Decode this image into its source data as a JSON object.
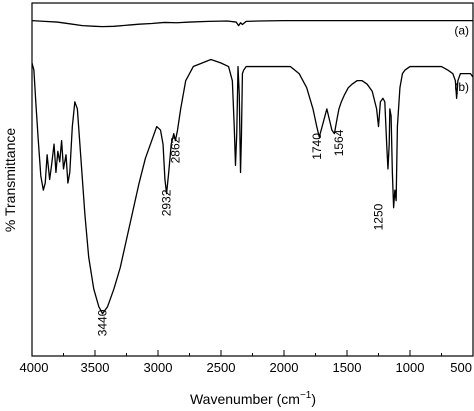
{
  "chart_data": {
    "type": "line",
    "xlabel": "Wavenumber (cm",
    "xlabel_sup": "−1",
    "xlabel_close": ")",
    "ylabel": "% Transmittance",
    "xlim": [
      4000,
      500
    ],
    "x_reversed": true,
    "ylim": [
      0,
      100
    ],
    "y_ticks_shown": false,
    "grid": false,
    "x_ticks": [
      4000,
      3500,
      3000,
      2500,
      2000,
      1500,
      1000,
      500
    ],
    "x_tick_labels": [
      "4000",
      "3500",
      "3000",
      "2500",
      "2000",
      "1500",
      "1000",
      "500"
    ],
    "series": [
      {
        "name": "(a)",
        "x": [
          4000,
          3900,
          3800,
          3700,
          3600,
          3500,
          3440,
          3350,
          3250,
          3150,
          3050,
          2950,
          2850,
          2750,
          2600,
          2450,
          2380,
          2360,
          2345,
          2330,
          2300,
          2200,
          2000,
          1800,
          1600,
          1400,
          1200,
          1000,
          800,
          600,
          500
        ],
        "y": [
          95.0,
          94.8,
          94.6,
          94.1,
          93.6,
          93.4,
          93.3,
          93.4,
          93.7,
          94.0,
          94.2,
          94.5,
          94.4,
          94.6,
          94.8,
          94.9,
          94.6,
          93.6,
          94.4,
          93.9,
          94.8,
          94.9,
          95.0,
          95.0,
          95.0,
          95.0,
          95.0,
          95.0,
          95.0,
          95.0,
          95.0
        ]
      },
      {
        "name": "(b)",
        "x": [
          4000,
          3985,
          3970,
          3950,
          3930,
          3910,
          3895,
          3880,
          3860,
          3845,
          3825,
          3810,
          3795,
          3780,
          3765,
          3750,
          3730,
          3715,
          3700,
          3680,
          3660,
          3640,
          3610,
          3580,
          3550,
          3510,
          3470,
          3440,
          3400,
          3350,
          3300,
          3250,
          3200,
          3150,
          3100,
          3050,
          3010,
          2980,
          2960,
          2945,
          2932,
          2915,
          2895,
          2875,
          2862,
          2845,
          2820,
          2780,
          2720,
          2650,
          2580,
          2500,
          2440,
          2410,
          2395,
          2385,
          2375,
          2365,
          2355,
          2345,
          2338,
          2330,
          2320,
          2300,
          2250,
          2150,
          2050,
          1950,
          1880,
          1820,
          1770,
          1740,
          1720,
          1690,
          1660,
          1640,
          1620,
          1600,
          1580,
          1564,
          1545,
          1520,
          1490,
          1460,
          1420,
          1380,
          1340,
          1300,
          1265,
          1250,
          1235,
          1215,
          1200,
          1185,
          1175,
          1165,
          1160,
          1150,
          1140,
          1130,
          1120,
          1110,
          1100,
          1080,
          1060,
          1040,
          1000,
          950,
          900,
          850,
          800,
          750,
          700,
          660,
          640,
          630,
          620,
          600,
          580,
          560,
          540,
          520,
          500
        ],
        "y": [
          83.0,
          81.0,
          72.0,
          61.0,
          51.0,
          47.0,
          49.0,
          57.0,
          50.0,
          54.0,
          60.0,
          52.0,
          58.0,
          55.0,
          61.0,
          53.0,
          57.0,
          49.0,
          52.0,
          65.0,
          72.0,
          70.0,
          55.0,
          40.0,
          28.0,
          19.0,
          14.0,
          12.0,
          14.0,
          19.0,
          25.0,
          33.0,
          41.0,
          49.0,
          56.0,
          61.0,
          65.0,
          64.0,
          60.0,
          50.0,
          46.0,
          52.0,
          60.0,
          63.0,
          61.0,
          64.0,
          70.0,
          78.0,
          82.0,
          83.0,
          84.0,
          83.0,
          82.0,
          78.0,
          65.0,
          54.0,
          63.0,
          82.0,
          74.0,
          52.0,
          62.0,
          80.0,
          81.0,
          82.0,
          82.0,
          82.0,
          82.0,
          82.0,
          80.0,
          76.0,
          70.0,
          65.0,
          62.0,
          66.0,
          70.0,
          67.0,
          64.0,
          63.0,
          67.0,
          70.0,
          72.0,
          74.0,
          76.0,
          77.0,
          78.0,
          78.0,
          77.0,
          75.0,
          70.0,
          65.0,
          72.0,
          73.0,
          72.0,
          60.0,
          53.0,
          60.0,
          70.0,
          68.0,
          52.0,
          42.0,
          47.0,
          44.0,
          65.0,
          76.0,
          80.0,
          81.0,
          82.0,
          82.0,
          82.0,
          82.0,
          82.0,
          82.0,
          81.0,
          80.0,
          78.0,
          73.0,
          78.0,
          80.0,
          80.0,
          80.0,
          80.0,
          80.0,
          79.0
        ]
      }
    ],
    "annotations": [
      {
        "text": "3440",
        "x": 3440,
        "y": 12,
        "rotate": -90
      },
      {
        "text": "2932",
        "x": 2932,
        "y": 46,
        "rotate": -90
      },
      {
        "text": "2862",
        "x": 2862,
        "y": 61,
        "rotate": -90
      },
      {
        "text": "1740",
        "x": 1740,
        "y": 62,
        "rotate": -90
      },
      {
        "text": "1564",
        "x": 1564,
        "y": 63,
        "rotate": -90
      },
      {
        "text": "1250",
        "x": 1250,
        "y": 42,
        "rotate": -90
      }
    ]
  }
}
